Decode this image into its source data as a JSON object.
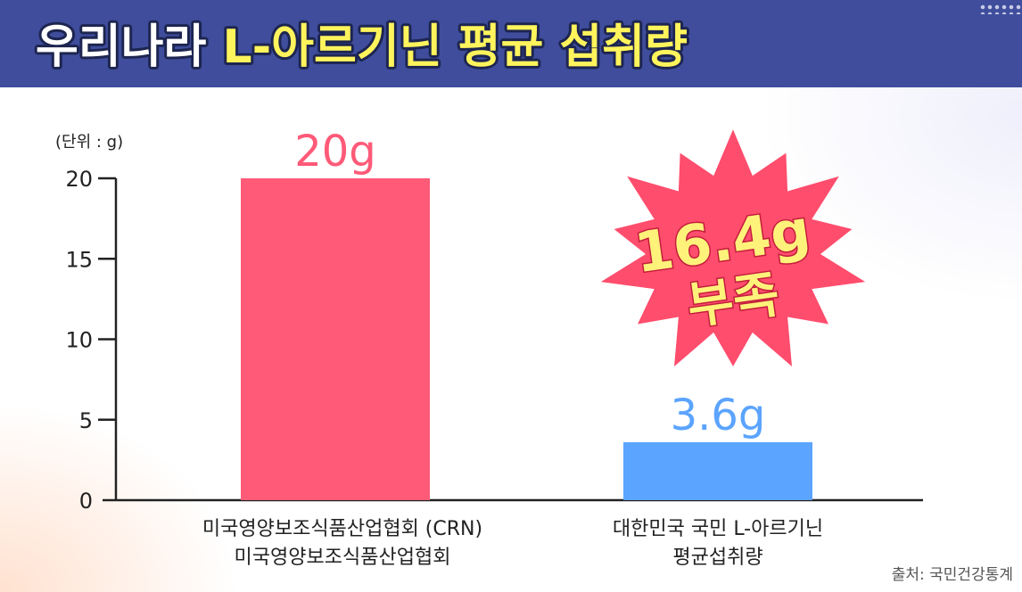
{
  "title": {
    "part1": "우리나라 ",
    "part2": "L-아르기닌 평균 섭취량",
    "color1": "#ffffff",
    "color2": "#fff45c"
  },
  "chart_data": {
    "type": "bar",
    "unit_label": "(단위 : g)",
    "categories": [
      [
        "미국영양보조식품산업협회 (CRN)",
        "미국영양보조식품산업협회"
      ],
      [
        "대한민국 국민 L-아르기닌",
        "평균섭취량"
      ]
    ],
    "values": [
      20,
      3.6
    ],
    "value_labels": [
      "20g",
      "3.6g"
    ],
    "colors": [
      "#ff5a78",
      "#5ba4ff"
    ],
    "ylim": [
      0,
      20
    ],
    "yticks": [
      0,
      5,
      10,
      15,
      20
    ],
    "grid": false,
    "annotation": {
      "lines": [
        "16.4g",
        "부족"
      ],
      "shape": "starburst",
      "color": "#ff4d6d"
    }
  },
  "source": "출처: 국민건강통계",
  "icons": {
    "header_decoration": "dots-pattern-icon"
  }
}
